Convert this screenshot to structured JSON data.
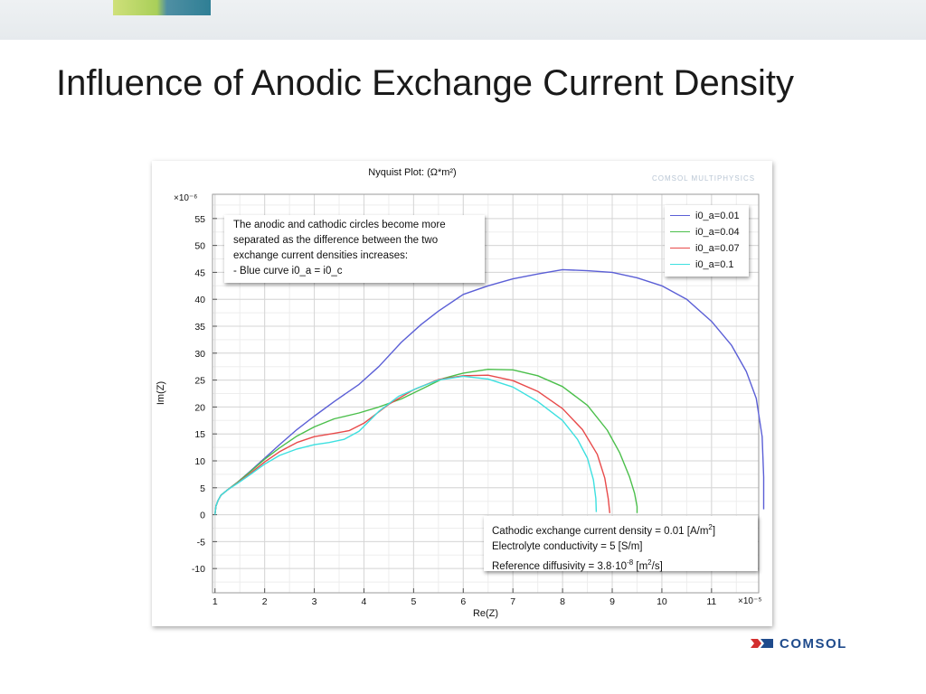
{
  "slide": {
    "title": "Influence of Anodic Exchange Current Density",
    "logo_text": "COMSOL"
  },
  "plot": {
    "title": "Nyquist Plot:  (Ω*m²)",
    "watermark": "COMSOL MULTIPHYSICS",
    "y_multiplier": "×10⁻⁶",
    "x_multiplier": "×10⁻⁵"
  },
  "annotations": {
    "note1": {
      "line1": "The anodic and cathodic circles become more",
      "line2": "separated as the difference between the two",
      "line3": "exchange current densities increases:",
      "line4": "- Blue curve i0_a = i0_c"
    },
    "note2": {
      "line1_text": "Cathodic exchange current density = 0.01 [A/m",
      "line1_sup": "2",
      "line1_end": "]",
      "line2": "Electrolyte conductivity = 5 [S/m]",
      "line3_text": "Reference diffusivity = 3.8·10",
      "line3_sup": "-8",
      "line3_mid": " [m",
      "line3_sup2": "2",
      "line3_end": "/s]"
    }
  },
  "chart_data": {
    "type": "line",
    "title": "Nyquist Plot:  (Ω*m²)",
    "xlabel": "Re(Z)",
    "ylabel": "Im(Z)",
    "x_scale": "×10⁻⁵",
    "y_scale": "×10⁻⁶",
    "xlim": [
      0.95,
      11.95
    ],
    "ylim": [
      -14.5,
      59.5
    ],
    "xticks": [
      1,
      2,
      3,
      4,
      5,
      6,
      7,
      8,
      9,
      10,
      11
    ],
    "yticks": [
      -10,
      -5,
      0,
      5,
      10,
      15,
      20,
      25,
      30,
      35,
      40,
      45,
      50,
      55
    ],
    "grid": true,
    "legend_position": "top-right",
    "series": [
      {
        "name": "i0_a=0.01",
        "color": "#5b5fd6",
        "x": [
          1.0,
          1.02,
          1.06,
          1.12,
          1.25,
          1.45,
          1.7,
          2.0,
          2.3,
          2.65,
          3.0,
          3.4,
          3.9,
          4.3,
          4.75,
          5.15,
          5.5,
          6.0,
          6.5,
          7.0,
          7.5,
          8.0,
          8.5,
          9.0,
          9.5,
          10.0,
          10.5,
          11.0,
          11.4,
          11.7,
          11.9,
          12.02,
          12.05,
          12.05
        ],
        "y": [
          0,
          1.6,
          2.6,
          3.6,
          4.6,
          6.0,
          8.0,
          10.5,
          13.0,
          15.8,
          18.3,
          21.0,
          24.2,
          27.5,
          32.0,
          35.3,
          37.8,
          40.9,
          42.5,
          43.8,
          44.7,
          45.5,
          45.3,
          45.0,
          44.0,
          42.5,
          40.0,
          35.9,
          31.5,
          26.6,
          21.6,
          14.5,
          7.0,
          1.0
        ]
      },
      {
        "name": "i0_a=0.04",
        "color": "#4bbf4b",
        "x": [
          1.0,
          1.02,
          1.06,
          1.12,
          1.25,
          1.45,
          1.7,
          2.0,
          2.3,
          2.65,
          3.0,
          3.4,
          3.9,
          4.3,
          4.75,
          5.2,
          5.6,
          6.0,
          6.5,
          7.0,
          7.5,
          8.0,
          8.5,
          8.9,
          9.15,
          9.35,
          9.45,
          9.5,
          9.5
        ],
        "y": [
          0,
          1.6,
          2.6,
          3.6,
          4.6,
          6.0,
          7.9,
          10.3,
          12.4,
          14.6,
          16.3,
          17.8,
          18.9,
          20.0,
          21.5,
          23.5,
          25.3,
          26.3,
          27.0,
          26.9,
          25.8,
          23.8,
          20.3,
          15.7,
          11.5,
          7.0,
          4.0,
          1.5,
          0.3
        ]
      },
      {
        "name": "i0_a=0.07",
        "color": "#e84a4a",
        "x": [
          1.0,
          1.02,
          1.06,
          1.12,
          1.25,
          1.45,
          1.7,
          2.0,
          2.3,
          2.65,
          3.0,
          3.4,
          3.7,
          4.0,
          4.5,
          5.0,
          5.5,
          6.0,
          6.5,
          7.0,
          7.5,
          8.0,
          8.4,
          8.7,
          8.85,
          8.92,
          8.95
        ],
        "y": [
          0,
          1.6,
          2.6,
          3.6,
          4.6,
          5.9,
          7.6,
          9.8,
          11.7,
          13.4,
          14.5,
          15.1,
          15.6,
          17.0,
          20.5,
          23.2,
          25.1,
          25.8,
          25.9,
          24.9,
          22.9,
          19.7,
          15.8,
          11.2,
          6.8,
          3.0,
          0.3
        ]
      },
      {
        "name": "i0_a=0.1",
        "color": "#3de0e0",
        "x": [
          1.0,
          1.02,
          1.06,
          1.12,
          1.25,
          1.45,
          1.7,
          2.0,
          2.3,
          2.65,
          3.0,
          3.3,
          3.6,
          3.9,
          4.3,
          4.7,
          5.1,
          5.5,
          6.0,
          6.5,
          7.0,
          7.5,
          8.0,
          8.3,
          8.5,
          8.62,
          8.67,
          8.68
        ],
        "y": [
          0,
          1.6,
          2.6,
          3.6,
          4.6,
          5.8,
          7.4,
          9.4,
          11.0,
          12.2,
          13.0,
          13.4,
          14.0,
          15.5,
          19.2,
          22.0,
          23.6,
          25.0,
          25.7,
          25.2,
          23.7,
          21.0,
          17.5,
          14.0,
          10.5,
          6.5,
          3.0,
          0.5
        ]
      }
    ]
  }
}
